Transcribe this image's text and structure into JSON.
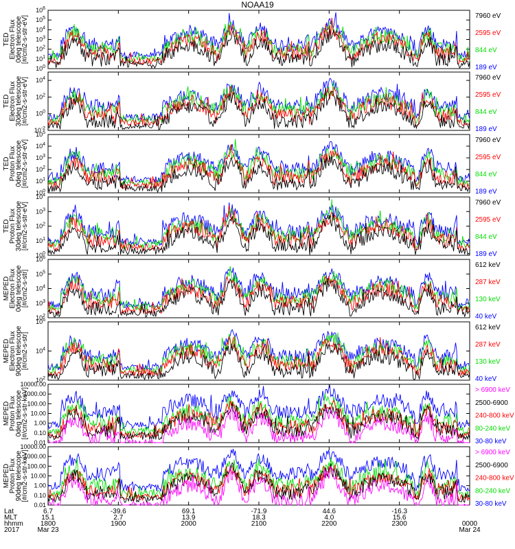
{
  "chart_data": {
    "title": "NOAA19",
    "type": "line",
    "panels": [
      {
        "ylabel": [
          "TED",
          "Electron Flux",
          "0deg telescope",
          "[#/cm2-s-str-eV]"
        ],
        "ytick_labels": [
          "10^6",
          "10^5",
          "10^4",
          "10^3",
          "10^2",
          "10^1",
          "10^0"
        ],
        "log_exponents": [
          6,
          5,
          4,
          3,
          2,
          1,
          0
        ],
        "ylim": [
          1,
          1000000
        ],
        "legend": [
          {
            "label": "7960 eV",
            "color": "#000000"
          },
          {
            "label": "2595 eV",
            "color": "#ff0000"
          },
          {
            "label": "844 eV",
            "color": "#00dd00"
          },
          {
            "label": "189 eV",
            "color": "#0000ff"
          }
        ]
      },
      {
        "ylabel": [
          "TED",
          "Electron Flux",
          "30deg telescope",
          "[#/cm2-s-str-eV]"
        ],
        "ytick_labels": [
          "10^4",
          "10^2",
          "10^0",
          "10^-2"
        ],
        "log_exponents": [
          4,
          2,
          0,
          -2
        ],
        "ylim": [
          0.01,
          100000
        ],
        "legend": [
          {
            "label": "7960 eV",
            "color": "#000000"
          },
          {
            "label": "2595 eV",
            "color": "#ff0000"
          },
          {
            "label": "844 eV",
            "color": "#00dd00"
          },
          {
            "label": "189 eV",
            "color": "#0000ff"
          }
        ]
      },
      {
        "ylabel": [
          "TED",
          "Proton Flux",
          "0deg telescope",
          "[#/cm2-s-str-eV]"
        ],
        "ytick_labels": [
          "10^5",
          "10^4",
          "10^3",
          "10^2",
          "10^1",
          "10^0"
        ],
        "log_exponents": [
          5,
          4,
          3,
          2,
          1,
          0
        ],
        "ylim": [
          1,
          100000
        ],
        "legend": [
          {
            "label": "7960 eV",
            "color": "#000000"
          },
          {
            "label": "2595 eV",
            "color": "#ff0000"
          },
          {
            "label": "844 eV",
            "color": "#00dd00"
          },
          {
            "label": "189 eV",
            "color": "#0000ff"
          }
        ]
      },
      {
        "ylabel": [
          "TED",
          "Proton Flux",
          "30deg telescope",
          "[#/cm2-s-str-eV]"
        ],
        "ytick_labels": [
          "10^4",
          "10^3",
          "10^2",
          "10^1",
          "10^0"
        ],
        "log_exponents": [
          4,
          3,
          2,
          1,
          0
        ],
        "ylim": [
          1,
          10000
        ],
        "legend": [
          {
            "label": "7960 eV",
            "color": "#000000"
          },
          {
            "label": "2595 eV",
            "color": "#ff0000"
          },
          {
            "label": "844 eV",
            "color": "#00dd00"
          },
          {
            "label": "189 eV",
            "color": "#0000ff"
          }
        ]
      },
      {
        "ylabel": [
          "MEPED",
          "Electron Flux",
          "0deg telescope",
          "[#/cm2-s-str]"
        ],
        "ytick_labels": [
          "10^6",
          "10^5",
          "10^4",
          "10^3",
          "10^2"
        ],
        "log_exponents": [
          6,
          5,
          4,
          3,
          2
        ],
        "ylim": [
          100,
          1000000
        ],
        "legend": [
          {
            "label": "612 keV",
            "color": "#000000"
          },
          {
            "label": "287 keV",
            "color": "#ff0000"
          },
          {
            "label": "130 keV",
            "color": "#00dd00"
          },
          {
            "label": "40 keV",
            "color": "#0000ff"
          }
        ]
      },
      {
        "ylabel": [
          "MEPED",
          "Electron Flux",
          "90deg telescope",
          "[#/cm2-s-str]"
        ],
        "ytick_labels": [
          "10^6",
          "10^4",
          "10^2"
        ],
        "log_exponents": [
          6,
          4,
          2
        ],
        "ylim": [
          100,
          1000000
        ],
        "legend": [
          {
            "label": "612 keV",
            "color": "#000000"
          },
          {
            "label": "287 keV",
            "color": "#ff0000"
          },
          {
            "label": "130 keV",
            "color": "#00dd00"
          },
          {
            "label": "40 keV",
            "color": "#0000ff"
          }
        ]
      },
      {
        "ylabel": [
          "MEPED",
          "Proton Flux",
          "0deg telescope",
          "[#/cm2-s-str-keV]"
        ],
        "ytick_labels": [
          "10000.00",
          "1000.00",
          "100.00",
          "10.00",
          "1.00",
          "0.10",
          "0.01"
        ],
        "log_exponents": [
          4,
          3,
          2,
          1,
          0,
          -1,
          -2
        ],
        "ylim": [
          0.01,
          10000
        ],
        "legend": [
          {
            "label": "> 6900 keV",
            "color": "#ff00ff"
          },
          {
            "label": "2500-6900",
            "color": "#000000"
          },
          {
            "label": "240-800 keV",
            "color": "#ff0000"
          },
          {
            "label": "80-240 keV",
            "color": "#00dd00"
          },
          {
            "label": "30-80 keV",
            "color": "#0000ff"
          }
        ]
      },
      {
        "ylabel": [
          "MEPED",
          "Proton Flux",
          "90deg telescope",
          "[#/cm2-s-str-keV]"
        ],
        "ytick_labels": [
          "10000.00",
          "1000.00",
          "100.00",
          "10.00",
          "1.00",
          "0.10",
          "0.01"
        ],
        "log_exponents": [
          4,
          3,
          2,
          1,
          0,
          -1,
          -2
        ],
        "ylim": [
          0.01,
          10000
        ],
        "legend": [
          {
            "label": "> 6900 keV",
            "color": "#ff00ff"
          },
          {
            "label": "2500-6900",
            "color": "#000000"
          },
          {
            "label": "240-800 keV",
            "color": "#ff0000"
          },
          {
            "label": "80-240 keV",
            "color": "#00dd00"
          },
          {
            "label": "30-80 keV",
            "color": "#0000ff"
          }
        ]
      }
    ],
    "x_axis": {
      "row_labels": [
        "Lat",
        "MLT",
        "hhmm",
        "2017"
      ],
      "ticks": [
        {
          "lat": "6.7",
          "mlt": "15.1",
          "hhmm": "1800",
          "date": "Mar 23"
        },
        {
          "lat": "-39.6",
          "mlt": "2.7",
          "hhmm": "1900",
          "date": ""
        },
        {
          "lat": "69.1",
          "mlt": "13.9",
          "hhmm": "2000",
          "date": ""
        },
        {
          "lat": "-71.9",
          "mlt": "18.3",
          "hhmm": "2100",
          "date": ""
        },
        {
          "lat": "44.6",
          "mlt": "4.0",
          "hhmm": "2200",
          "date": ""
        },
        {
          "lat": "-16.3",
          "mlt": "15.6",
          "hhmm": "2300",
          "date": ""
        },
        {
          "lat": "",
          "mlt": "",
          "hhmm": "0000",
          "date": "Mar 24"
        }
      ]
    },
    "passes": [
      {
        "start": 0.03,
        "end": 0.17,
        "kind": "inner"
      },
      {
        "start": 0.27,
        "end": 0.4,
        "kind": "polar"
      },
      {
        "start": 0.4,
        "end": 0.47,
        "kind": "slot"
      },
      {
        "start": 0.47,
        "end": 0.62,
        "kind": "inner"
      },
      {
        "start": 0.62,
        "end": 0.72,
        "kind": "slot"
      },
      {
        "start": 0.72,
        "end": 0.87,
        "kind": "polar"
      },
      {
        "start": 0.88,
        "end": 0.97,
        "kind": "inner"
      }
    ]
  }
}
